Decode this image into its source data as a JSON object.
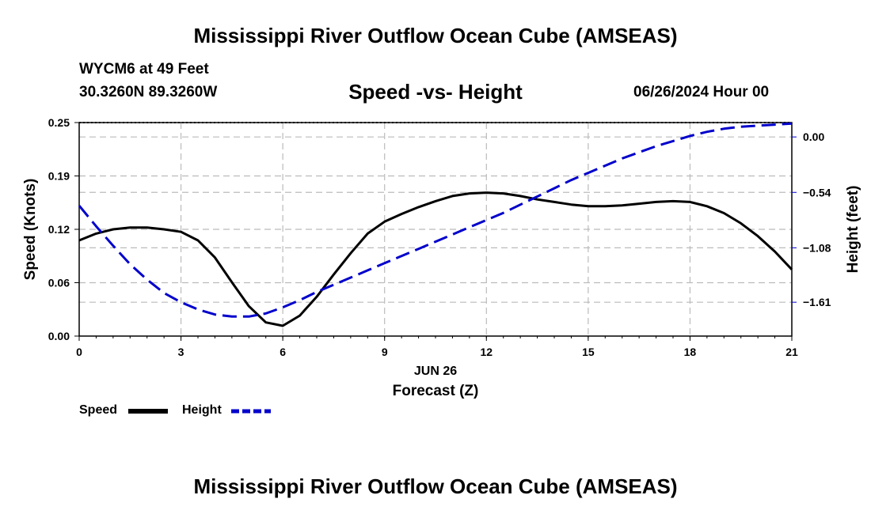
{
  "header": {
    "title": "Mississippi River Outflow Ocean Cube (AMSEAS)",
    "station": "WYCM6 at 49 Feet",
    "coordinates": "30.3260N  89.3260W",
    "subtitle": "Speed -vs- Height",
    "datetime": "06/26/2024 Hour 00"
  },
  "footer": {
    "title": "Mississippi River Outflow Ocean Cube (AMSEAS)"
  },
  "colors": {
    "speed": "#000000",
    "height": "#0000cc",
    "grid": "#bbbbbb"
  },
  "chart_data": {
    "type": "line",
    "title": "Speed -vs- Height",
    "xlabel": "Forecast (Z)",
    "xlabel_date": "JUN 26",
    "x_ticks": [
      0,
      3,
      6,
      9,
      12,
      15,
      18,
      21
    ],
    "xlim": [
      0,
      21
    ],
    "y_left": {
      "label": "Speed (Knots)",
      "ticks": [
        "0.00",
        "0.06",
        "0.12",
        "0.19",
        "0.25"
      ],
      "tick_values": [
        0.0,
        0.0625,
        0.125,
        0.1875,
        0.25
      ],
      "lim": [
        0,
        0.25
      ]
    },
    "y_right": {
      "label": "Height (feet)",
      "ticks": [
        "0.00",
        "−0.54",
        "−1.08",
        "−1.61"
      ],
      "tick_values": [
        0.0,
        -0.54,
        -1.08,
        -1.61
      ],
      "lim": [
        -1.94,
        0.14
      ]
    },
    "grid": true,
    "series": [
      {
        "name": "Speed",
        "axis": "left",
        "style": "solid",
        "x": [
          0,
          0.5,
          1,
          1.5,
          2,
          2.5,
          3,
          3.5,
          4,
          4.5,
          5,
          5.5,
          6,
          6.5,
          7,
          7.5,
          8,
          8.5,
          9,
          9.5,
          10,
          10.5,
          11,
          11.5,
          12,
          12.5,
          13,
          13.5,
          14,
          14.5,
          15,
          15.5,
          16,
          16.5,
          17,
          17.5,
          18,
          18.5,
          19,
          19.5,
          20,
          20.5,
          21
        ],
        "values": [
          0.112,
          0.12,
          0.125,
          0.127,
          0.127,
          0.125,
          0.122,
          0.112,
          0.092,
          0.063,
          0.035,
          0.016,
          0.012,
          0.024,
          0.046,
          0.072,
          0.097,
          0.12,
          0.134,
          0.143,
          0.151,
          0.158,
          0.164,
          0.167,
          0.168,
          0.167,
          0.164,
          0.16,
          0.157,
          0.154,
          0.152,
          0.152,
          0.153,
          0.155,
          0.157,
          0.158,
          0.157,
          0.152,
          0.144,
          0.132,
          0.117,
          0.099,
          0.078
        ]
      },
      {
        "name": "Height",
        "axis": "right",
        "style": "dashed",
        "x": [
          0,
          0.5,
          1,
          1.5,
          2,
          2.5,
          3,
          3.5,
          4,
          4.5,
          5,
          5.5,
          6,
          6.5,
          7,
          7.5,
          8,
          8.5,
          9,
          9.5,
          10,
          10.5,
          11,
          11.5,
          12,
          12.5,
          13,
          13.5,
          14,
          14.5,
          15,
          15.5,
          16,
          16.5,
          17,
          17.5,
          18,
          18.5,
          19,
          19.5,
          20,
          20.5,
          21
        ],
        "values": [
          -0.67,
          -0.87,
          -1.06,
          -1.24,
          -1.39,
          -1.52,
          -1.61,
          -1.68,
          -1.73,
          -1.75,
          -1.75,
          -1.72,
          -1.66,
          -1.59,
          -1.51,
          -1.44,
          -1.37,
          -1.3,
          -1.23,
          -1.16,
          -1.09,
          -1.02,
          -0.95,
          -0.88,
          -0.81,
          -0.74,
          -0.66,
          -0.58,
          -0.5,
          -0.42,
          -0.35,
          -0.28,
          -0.21,
          -0.15,
          -0.09,
          -0.04,
          0.01,
          0.05,
          0.08,
          0.1,
          0.11,
          0.12,
          0.13
        ]
      }
    ],
    "legend": {
      "position": "bottom-left",
      "entries": [
        "Speed",
        "Height"
      ]
    }
  }
}
